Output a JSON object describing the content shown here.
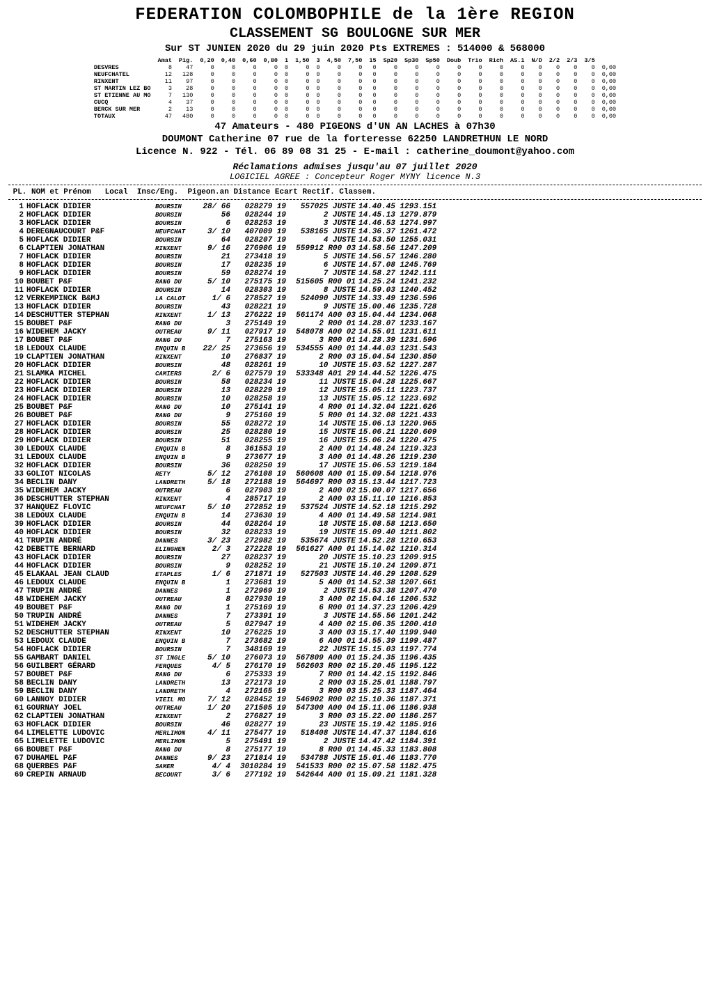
{
  "header": {
    "title": "FEDERATION COLOMBOPHILE de la  1ère REGION",
    "subtitle": "CLASSEMENT SG BOULOGNE SUR MER",
    "line3": "Sur ST JUNIEN 2020 du 29 juin 2020 Pts EXTREMES : 514000 & 568000"
  },
  "grid": {
    "columns": [
      "",
      "Amat",
      "Pig.",
      "0,20",
      "0,40",
      "0,60",
      "0,80",
      "1",
      "1,50",
      "3",
      "4,50",
      "7,50",
      "15",
      "Sp20",
      "Sp30",
      "Sp50",
      "Doub",
      "Trio",
      "Rich",
      "AS.1",
      "N/D",
      "2/2",
      "2/3",
      "3/5",
      ""
    ],
    "rows": [
      [
        "DESVRES",
        "8",
        "47",
        "0",
        "0",
        "0",
        "0",
        "0",
        "0",
        "0",
        "0",
        "0",
        "0",
        "0",
        "0",
        "0",
        "0",
        "0",
        "0",
        "0",
        "0",
        "0",
        "0",
        "0",
        "0,00"
      ],
      [
        "NEUFCHATEL",
        "12",
        "128",
        "0",
        "0",
        "0",
        "0",
        "0",
        "0",
        "0",
        "0",
        "0",
        "0",
        "0",
        "0",
        "0",
        "0",
        "0",
        "0",
        "0",
        "0",
        "0",
        "0",
        "0",
        "0,00"
      ],
      [
        "RINXENT",
        "11",
        "97",
        "0",
        "0",
        "0",
        "0",
        "0",
        "0",
        "0",
        "0",
        "0",
        "0",
        "0",
        "0",
        "0",
        "0",
        "0",
        "0",
        "0",
        "0",
        "0",
        "0",
        "0",
        "0,00"
      ],
      [
        "ST MARTIN LEZ BO",
        "3",
        "28",
        "0",
        "0",
        "0",
        "0",
        "0",
        "0",
        "0",
        "0",
        "0",
        "0",
        "0",
        "0",
        "0",
        "0",
        "0",
        "0",
        "0",
        "0",
        "0",
        "0",
        "0",
        "0,00"
      ],
      [
        "ST ETIENNE AU MO",
        "7",
        "130",
        "0",
        "0",
        "0",
        "0",
        "0",
        "0",
        "0",
        "0",
        "0",
        "0",
        "0",
        "0",
        "0",
        "0",
        "0",
        "0",
        "0",
        "0",
        "0",
        "0",
        "0",
        "0,00"
      ],
      [
        "CUCQ",
        "4",
        "37",
        "0",
        "0",
        "0",
        "0",
        "0",
        "0",
        "0",
        "0",
        "0",
        "0",
        "0",
        "0",
        "0",
        "0",
        "0",
        "0",
        "0",
        "0",
        "0",
        "0",
        "0",
        "0,00"
      ],
      [
        "BERCK SUR MER",
        "2",
        "13",
        "0",
        "0",
        "0",
        "0",
        "0",
        "0",
        "0",
        "0",
        "0",
        "0",
        "0",
        "0",
        "0",
        "0",
        "0",
        "0",
        "0",
        "0",
        "0",
        "0",
        "0",
        "0,00"
      ],
      [
        "TOTAUX",
        "47",
        "480",
        "0",
        "0",
        "0",
        "0",
        "0",
        "0",
        "0",
        "0",
        "0",
        "0",
        "0",
        "0",
        "0",
        "0",
        "0",
        "0",
        "0",
        "0",
        "0",
        "0",
        "0",
        "0,00"
      ]
    ]
  },
  "summary_line": "47 Amateurs - 480 PIGEONS d'UN AN LACHES à 07h30",
  "address_line": "DOUMONT Catherine 07 rue de la forteresse 62250 LANDRETHUN LE NORD",
  "licence_line": "Licence N. 922 - Tél. 06 89 08 31 25 - E-mail : catherine_doumont@yahoo.com",
  "recl_line": "Réclamations admises jusqu'au 07 juillet 2020",
  "logiciel_line": "LOGICIEL AGREE : Concepteur Roger MYNY licence N.3",
  "results_header": " PL. NOM et Prénom   Local  Insc/Eng.  Pigeon.an Distance Ecart Rectif. Classem.",
  "rows": [
    {
      "r": 1,
      "nm": "HOFLACK DIDIER",
      "loc": "BOURSIN",
      "ie": "28/ 66",
      "pig": "028279 19",
      "dist": "557025 JUSTE",
      "rect": "14.40.45 1293.151"
    },
    {
      "r": 2,
      "nm": "HOFLACK DIDIER",
      "loc": "BOURSIN",
      "ie": "56",
      "pig": "028244 19",
      "dist": "2     JUSTE",
      "rect": "14.45.13 1279.879"
    },
    {
      "r": 3,
      "nm": "HOFLACK DIDIER",
      "loc": "BOURSIN",
      "ie": "6",
      "pig": "028253 19",
      "dist": "3     JUSTE",
      "rect": "14.46.53 1274.997"
    },
    {
      "r": 4,
      "nm": "DEREGNAUCOURT P&F",
      "loc": "NEUFCHAT",
      "ie": "3/ 10",
      "pig": "407009 19",
      "dist": "538165 JUSTE",
      "rect": "14.36.37 1261.472"
    },
    {
      "r": 5,
      "nm": "HOFLACK DIDIER",
      "loc": "BOURSIN",
      "ie": "64",
      "pig": "028207 19",
      "dist": "4     JUSTE",
      "rect": "14.53.50 1255.031"
    },
    {
      "r": 6,
      "nm": "CLAPTIEN JONATHAN",
      "loc": "RINXENT",
      "ie": "9/ 16",
      "pig": "276906 19",
      "dist": "559912 R00 03",
      "rect": "14.58.56 1247.209"
    },
    {
      "r": 7,
      "nm": "HOFLACK DIDIER",
      "loc": "BOURSIN",
      "ie": "21",
      "pig": "273418 19",
      "dist": "5     JUSTE",
      "rect": "14.56.57 1246.280"
    },
    {
      "r": 8,
      "nm": "HOFLACK DIDIER",
      "loc": "BOURSIN",
      "ie": "17",
      "pig": "028235 19",
      "dist": "6     JUSTE",
      "rect": "14.57.08 1245.769"
    },
    {
      "r": 9,
      "nm": "HOFLACK DIDIER",
      "loc": "BOURSIN",
      "ie": "59",
      "pig": "028274 19",
      "dist": "7     JUSTE",
      "rect": "14.58.27 1242.111"
    },
    {
      "r": 10,
      "nm": "BOUBET P&F",
      "loc": "RANG DU",
      "ie": "5/ 10",
      "pig": "275175 19",
      "dist": "515605 R00 01",
      "rect": "14.25.24 1241.232"
    },
    {
      "r": 11,
      "nm": "HOFLACK DIDIER",
      "loc": "BOURSIN",
      "ie": "14",
      "pig": "028303 19",
      "dist": "8     JUSTE",
      "rect": "14.59.03 1240.452"
    },
    {
      "r": 12,
      "nm": "VERKEMPINCK B&MJ",
      "loc": "LA CALOT",
      "ie": "1/  6",
      "pig": "278527 19",
      "dist": "524090 JUSTE",
      "rect": "14.33.49 1236.596"
    },
    {
      "r": 13,
      "nm": "HOFLACK DIDIER",
      "loc": "BOURSIN",
      "ie": "43",
      "pig": "028221 19",
      "dist": "9     JUSTE",
      "rect": "15.00.46 1235.728"
    },
    {
      "r": 14,
      "nm": "DESCHUTTER STEPHAN",
      "loc": "RINXENT",
      "ie": "1/ 13",
      "pig": "276222 19",
      "dist": "561174 A00 03",
      "rect": "15.04.44 1234.068"
    },
    {
      "r": 15,
      "nm": "BOUBET P&F",
      "loc": "RANG DU",
      "ie": "3",
      "pig": "275149 19",
      "dist": "2     R00 01",
      "rect": "14.28.07 1233.167"
    },
    {
      "r": 16,
      "nm": "WIDEHEM JACKY",
      "loc": "OUTREAU",
      "ie": "9/ 11",
      "pig": "027917 19",
      "dist": "548078 A00 02",
      "rect": "14.55.01 1231.611"
    },
    {
      "r": 17,
      "nm": "BOUBET P&F",
      "loc": "RANG DU",
      "ie": "7",
      "pig": "275163 19",
      "dist": "3     R00 01",
      "rect": "14.28.39 1231.596"
    },
    {
      "r": 18,
      "nm": "LEDOUX CLAUDE",
      "loc": "ENQUIN B",
      "ie": "22/ 25",
      "pig": "273656 19",
      "dist": "534555 A00 01",
      "rect": "14.44.03 1231.543"
    },
    {
      "r": 19,
      "nm": "CLAPTIEN JONATHAN",
      "loc": "RINXENT",
      "ie": "10",
      "pig": "276837 19",
      "dist": "2     R00 03",
      "rect": "15.04.54 1230.850"
    },
    {
      "r": 20,
      "nm": "HOFLACK DIDIER",
      "loc": "BOURSIN",
      "ie": "48",
      "pig": "028261 19",
      "dist": "10     JUSTE",
      "rect": "15.03.52 1227.287"
    },
    {
      "r": 21,
      "nm": "SLAMKA MICHEL",
      "loc": "CAMIERS",
      "ie": "2/  6",
      "pig": "027579 19",
      "dist": "533348 A01 29",
      "rect": "14.44.52 1226.475"
    },
    {
      "r": 22,
      "nm": "HOFLACK DIDIER",
      "loc": "BOURSIN",
      "ie": "58",
      "pig": "028234 19",
      "dist": "11     JUSTE",
      "rect": "15.04.28 1225.667"
    },
    {
      "r": 23,
      "nm": "HOFLACK DIDIER",
      "loc": "BOURSIN",
      "ie": "13",
      "pig": "028229 19",
      "dist": "12     JUSTE",
      "rect": "15.05.11 1223.737"
    },
    {
      "r": 24,
      "nm": "HOFLACK DIDIER",
      "loc": "BOURSIN",
      "ie": "10",
      "pig": "028258 19",
      "dist": "13     JUSTE",
      "rect": "15.05.12 1223.692"
    },
    {
      "r": 25,
      "nm": "BOUBET P&F",
      "loc": "RANG DU",
      "ie": "10",
      "pig": "275141 19",
      "dist": "4     R00 01",
      "rect": "14.32.04 1221.626"
    },
    {
      "r": 26,
      "nm": "BOUBET P&F",
      "loc": "RANG DU",
      "ie": "9",
      "pig": "275160 19",
      "dist": "5     R00 01",
      "rect": "14.32.08 1221.433"
    },
    {
      "r": 27,
      "nm": "HOFLACK DIDIER",
      "loc": "BOURSIN",
      "ie": "55",
      "pig": "028272 19",
      "dist": "14     JUSTE",
      "rect": "15.06.13 1220.965"
    },
    {
      "r": 28,
      "nm": "HOFLACK DIDIER",
      "loc": "BOURSIN",
      "ie": "25",
      "pig": "028280 19",
      "dist": "15     JUSTE",
      "rect": "15.06.21 1220.609"
    },
    {
      "r": 29,
      "nm": "HOFLACK DIDIER",
      "loc": "BOURSIN",
      "ie": "51",
      "pig": "028255 19",
      "dist": "16     JUSTE",
      "rect": "15.06.24 1220.475"
    },
    {
      "r": 30,
      "nm": "LEDOUX CLAUDE",
      "loc": "ENQUIN B",
      "ie": "8",
      "pig": "361553 19",
      "dist": "2     A00 01",
      "rect": "14.48.24 1219.323"
    },
    {
      "r": 31,
      "nm": "LEDOUX CLAUDE",
      "loc": "ENQUIN B",
      "ie": "9",
      "pig": "273677 19",
      "dist": "3     A00 01",
      "rect": "14.48.26 1219.230"
    },
    {
      "r": 32,
      "nm": "HOFLACK DIDIER",
      "loc": "BOURSIN",
      "ie": "36",
      "pig": "028250 19",
      "dist": "17     JUSTE",
      "rect": "15.06.53 1219.184"
    },
    {
      "r": 33,
      "nm": "GOLIOT NICOLAS",
      "loc": "RETY",
      "ie": "5/ 12",
      "pig": "276108 19",
      "dist": "560608 A00 01",
      "rect": "15.09.54 1218.976"
    },
    {
      "r": 34,
      "nm": "BECLIN DANY",
      "loc": "LANDRETH",
      "ie": "5/ 18",
      "pig": "272188 19",
      "dist": "564697 R00 03",
      "rect": "15.13.44 1217.723"
    },
    {
      "r": 35,
      "nm": "WIDEHEM JACKY",
      "loc": "OUTREAU",
      "ie": "6",
      "pig": "027903 19",
      "dist": "2     A00 02",
      "rect": "15.00.07 1217.656"
    },
    {
      "r": 36,
      "nm": "DESCHUTTER STEPHAN",
      "loc": "RINXENT",
      "ie": "4",
      "pig": "285717 19",
      "dist": "2     A00 03",
      "rect": "15.11.10 1216.853"
    },
    {
      "r": 37,
      "nm": "HANQUEZ FLOVIC",
      "loc": "NEUFCHAT",
      "ie": "5/ 10",
      "pig": "272852 19",
      "dist": "537524 JUSTE",
      "rect": "14.52.18 1215.292"
    },
    {
      "r": 38,
      "nm": "LEDOUX CLAUDE",
      "loc": "ENQUIN B",
      "ie": "14",
      "pig": "273630 19",
      "dist": "4     A00 01",
      "rect": "14.49.58 1214.981"
    },
    {
      "r": 39,
      "nm": "HOFLACK DIDIER",
      "loc": "BOURSIN",
      "ie": "44",
      "pig": "028264 19",
      "dist": "18     JUSTE",
      "rect": "15.08.58 1213.650"
    },
    {
      "r": 40,
      "nm": "HOFLACK DIDIER",
      "loc": "BOURSIN",
      "ie": "32",
      "pig": "028233 19",
      "dist": "19     JUSTE",
      "rect": "15.09.40 1211.802"
    },
    {
      "r": 41,
      "nm": "TRUPIN ANDRÉ",
      "loc": "DANNES",
      "ie": "3/ 23",
      "pig": "272982 19",
      "dist": "535674 JUSTE",
      "rect": "14.52.28 1210.653"
    },
    {
      "r": 42,
      "nm": "DEBETTE BERNARD",
      "loc": "ELINGHEN",
      "ie": "2/  3",
      "pig": "272228 19",
      "dist": "561627 A00 01",
      "rect": "15.14.02 1210.314"
    },
    {
      "r": 43,
      "nm": "HOFLACK DIDIER",
      "loc": "BOURSIN",
      "ie": "27",
      "pig": "028237 19",
      "dist": "20     JUSTE",
      "rect": "15.10.23 1209.915"
    },
    {
      "r": 44,
      "nm": "HOFLACK DIDIER",
      "loc": "BOURSIN",
      "ie": "9",
      "pig": "028252 19",
      "dist": "21     JUSTE",
      "rect": "15.10.24 1209.871"
    },
    {
      "r": 45,
      "nm": "ELAKAAL JEAN CLAUD",
      "loc": "ETAPLES",
      "ie": "1/  6",
      "pig": "271871 19",
      "dist": "527503 JUSTE",
      "rect": "14.46.29 1208.529"
    },
    {
      "r": 46,
      "nm": "LEDOUX CLAUDE",
      "loc": "ENQUIN B",
      "ie": "1",
      "pig": "273681 19",
      "dist": "5     A00 01",
      "rect": "14.52.38 1207.661"
    },
    {
      "r": 47,
      "nm": "TRUPIN ANDRÉ",
      "loc": "DANNES",
      "ie": "1",
      "pig": "272969 19",
      "dist": "2     JUSTE",
      "rect": "14.53.38 1207.470"
    },
    {
      "r": 48,
      "nm": "WIDEHEM JACKY",
      "loc": "OUTREAU",
      "ie": "8",
      "pig": "027930 19",
      "dist": "3     A00 02",
      "rect": "15.04.16 1206.532"
    },
    {
      "r": 49,
      "nm": "BOUBET P&F",
      "loc": "RANG DU",
      "ie": "1",
      "pig": "275169 19",
      "dist": "6     R00 01",
      "rect": "14.37.23 1206.429"
    },
    {
      "r": 50,
      "nm": "TRUPIN ANDRÉ",
      "loc": "DANNES",
      "ie": "7",
      "pig": "273391 19",
      "dist": "3     JUSTE",
      "rect": "14.55.56 1201.242"
    },
    {
      "r": 51,
      "nm": "WIDEHEM JACKY",
      "loc": "OUTREAU",
      "ie": "5",
      "pig": "027947 19",
      "dist": "4     A00 02",
      "rect": "15.06.35 1200.410"
    },
    {
      "r": 52,
      "nm": "DESCHUTTER STEPHAN",
      "loc": "RINXENT",
      "ie": "10",
      "pig": "276225 19",
      "dist": "3     A00 03",
      "rect": "15.17.40 1199.940"
    },
    {
      "r": 53,
      "nm": "LEDOUX CLAUDE",
      "loc": "ENQUIN B",
      "ie": "7",
      "pig": "273682 19",
      "dist": "6     A00 01",
      "rect": "14.55.39 1199.487"
    },
    {
      "r": 54,
      "nm": "HOFLACK DIDIER",
      "loc": "BOURSIN",
      "ie": "7",
      "pig": "348169 19",
      "dist": "22     JUSTE",
      "rect": "15.15.03 1197.774"
    },
    {
      "r": 55,
      "nm": "GAMBART DANIEL",
      "loc": "ST INGLE",
      "ie": "5/ 10",
      "pig": "276073 19",
      "dist": "567809 A00 01",
      "rect": "15.24.35 1196.435"
    },
    {
      "r": 56,
      "nm": "GUILBERT GÉRARD",
      "loc": "FERQUES",
      "ie": "4/  5",
      "pig": "276170 19",
      "dist": "562603 R00 02",
      "rect": "15.20.45 1195.122"
    },
    {
      "r": 57,
      "nm": "BOUBET P&F",
      "loc": "RANG DU",
      "ie": "6",
      "pig": "275333 19",
      "dist": "7     R00 01",
      "rect": "14.42.15 1192.846"
    },
    {
      "r": 58,
      "nm": "BECLIN DANY",
      "loc": "LANDRETH",
      "ie": "13",
      "pig": "272173 19",
      "dist": "2     R00 03",
      "rect": "15.25.01 1188.797"
    },
    {
      "r": 59,
      "nm": "BECLIN DANY",
      "loc": "LANDRETH",
      "ie": "4",
      "pig": "272165 19",
      "dist": "3     R00 03",
      "rect": "15.25.33 1187.464"
    },
    {
      "r": 60,
      "nm": "LANNOY DIDIER",
      "loc": "VIEIL MO",
      "ie": "7/ 12",
      "pig": "028452 19",
      "dist": "546902 R00 02",
      "rect": "15.10.36 1187.371"
    },
    {
      "r": 61,
      "nm": "GOURNAY JOEL",
      "loc": "OUTREAU",
      "ie": "1/ 20",
      "pig": "271505 19",
      "dist": "547300 A00 04",
      "rect": "15.11.06 1186.938"
    },
    {
      "r": 62,
      "nm": "CLAPTIEN JONATHAN",
      "loc": "RINXENT",
      "ie": "2",
      "pig": "276827 19",
      "dist": "3     R00 03",
      "rect": "15.22.00 1186.257"
    },
    {
      "r": 63,
      "nm": "HOFLACK DIDIER",
      "loc": "BOURSIN",
      "ie": "46",
      "pig": "028277 19",
      "dist": "23     JUSTE",
      "rect": "15.19.42 1185.916"
    },
    {
      "r": 64,
      "nm": "LIMELETTE LUDOVIC",
      "loc": "MERLIMON",
      "ie": "4/ 11",
      "pig": "275477 19",
      "dist": "518408 JUSTE",
      "rect": "14.47.37 1184.616"
    },
    {
      "r": 65,
      "nm": "LIMELETTE LUDOVIC",
      "loc": "MERLIMON",
      "ie": "5",
      "pig": "275491 19",
      "dist": "2     JUSTE",
      "rect": "14.47.42 1184.391"
    },
    {
      "r": 66,
      "nm": "BOUBET P&F",
      "loc": "RANG DU",
      "ie": "8",
      "pig": "275177 19",
      "dist": "8     R00 01",
      "rect": "14.45.33 1183.808"
    },
    {
      "r": 67,
      "nm": "DUHAMEL P&F",
      "loc": "DANNES",
      "ie": "9/ 23",
      "pig": "271814 19",
      "dist": "534788 JUSTE",
      "rect": "15.01.46 1183.770"
    },
    {
      "r": 68,
      "nm": "QUERBES P&F",
      "loc": "SAMER",
      "ie": "4/  4",
      "pig": "3010284 19",
      "dist": "541533 R00 02",
      "rect": "15.07.58 1182.475"
    },
    {
      "r": 69,
      "nm": "CREPIN ARNAUD",
      "loc": "BECOURT",
      "ie": "3/  6",
      "pig": "277192 19",
      "dist": "542644 A00 01",
      "rect": "15.09.21 1181.328"
    }
  ],
  "style": {
    "background_color": "#ffffff",
    "text_color": "#000000",
    "title_fontsize": 24,
    "subtitle_fontsize": 20,
    "line3_fontsize": 14,
    "grid_fontsize": 8.5,
    "boldline_fontsize": 14,
    "note_fontsize": 13,
    "body_fontsize": 11,
    "font_family": "Courier New, monospace"
  }
}
